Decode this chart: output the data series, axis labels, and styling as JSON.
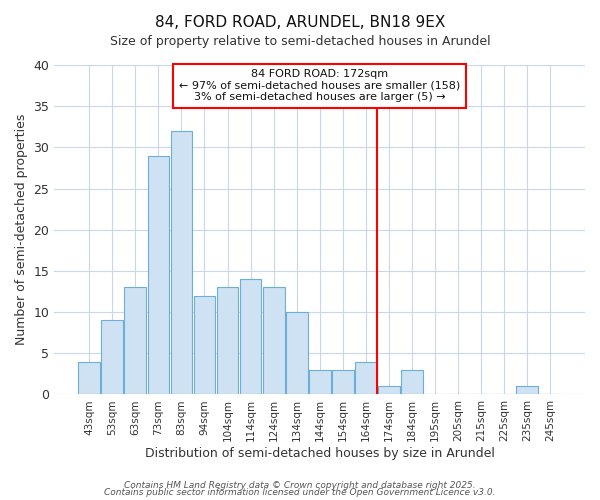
{
  "title": "84, FORD ROAD, ARUNDEL, BN18 9EX",
  "subtitle": "Size of property relative to semi-detached houses in Arundel",
  "xlabel": "Distribution of semi-detached houses by size in Arundel",
  "ylabel": "Number of semi-detached properties",
  "bar_labels": [
    "43sqm",
    "53sqm",
    "63sqm",
    "73sqm",
    "83sqm",
    "94sqm",
    "104sqm",
    "114sqm",
    "124sqm",
    "134sqm",
    "144sqm",
    "154sqm",
    "164sqm",
    "174sqm",
    "184sqm",
    "195sqm",
    "205sqm",
    "215sqm",
    "225sqm",
    "235sqm",
    "245sqm"
  ],
  "bar_values": [
    4,
    9,
    13,
    29,
    32,
    12,
    13,
    14,
    13,
    10,
    3,
    3,
    4,
    1,
    3,
    0,
    0,
    0,
    0,
    1,
    0
  ],
  "bar_color": "#cfe2f3",
  "bar_edge_color": "#6baed6",
  "ylim": [
    0,
    40
  ],
  "yticks": [
    0,
    5,
    10,
    15,
    20,
    25,
    30,
    35,
    40
  ],
  "red_line_x": 12.5,
  "annotation_title": "84 FORD ROAD: 172sqm",
  "annotation_line1": "← 97% of semi-detached houses are smaller (158)",
  "annotation_line2": "3% of semi-detached houses are larger (5) →",
  "footer1": "Contains HM Land Registry data © Crown copyright and database right 2025.",
  "footer2": "Contains public sector information licensed under the Open Government Licence v3.0.",
  "background_color": "#ffffff",
  "plot_bg_color": "#ffffff",
  "grid_color": "#c8d8e8",
  "title_fontsize": 11,
  "subtitle_fontsize": 9,
  "xlabel_fontsize": 9,
  "ylabel_fontsize": 9
}
